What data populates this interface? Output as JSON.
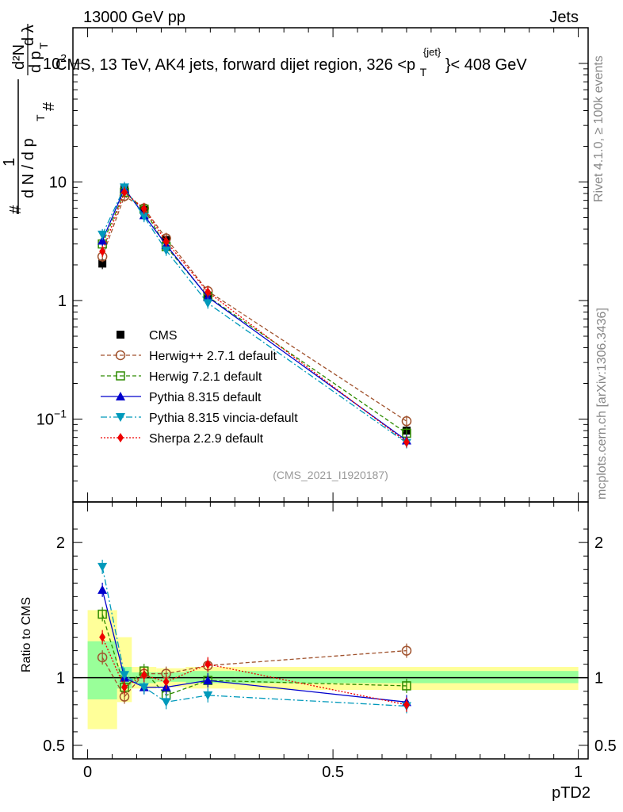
{
  "header": {
    "left": "13000 GeV pp",
    "right": "Jets"
  },
  "side_labels": {
    "rivet": "Rivet 4.1.0, ≥ 100k events",
    "mcplots": "mcplots.cern.ch [arXiv:1306.3436]"
  },
  "colors": {
    "band_inner": "#99ff99",
    "band_outer": "#ffff99"
  },
  "chart_data": [
    {
      "type": "line",
      "panel": "main",
      "title": "CMS, 13 TeV, AK4 jets, forward dijet region, 326 <p_T^{jet}}< 408 GeV",
      "title_parts": {
        "text": "CMS, 13 TeV, AK4 jets, forward dijet region, 326 <p",
        "sub": "T",
        "sup": "{jet}",
        "tail": "}< 408 GeV"
      },
      "ylabel_parts": {
        "one": "1",
        "hash": "#",
        "dn": "d N / d p",
        "t": "T",
        "d2n": "d²N",
        "dpt": "d p",
        "dl": "d λ"
      },
      "yscale": "log",
      "ylim": [
        0.02,
        200
      ],
      "xlim": [
        -0.03,
        1.02
      ],
      "yticks": [
        {
          "v": 0.1,
          "base": "10",
          "exp": "−1"
        },
        {
          "v": 1,
          "label": "1"
        },
        {
          "v": 10,
          "label": "10"
        },
        {
          "v": 100,
          "base": "10",
          "exp": "2"
        }
      ],
      "annotation": "(CMS_2021_I1920187)",
      "x": [
        0.03,
        0.075,
        0.115,
        0.16,
        0.245,
        0.65
      ],
      "x_edges": [
        0,
        0.06,
        0.09,
        0.14,
        0.2,
        0.3,
        1.0
      ],
      "series": [
        {
          "name": "CMS",
          "color": "#000000",
          "marker": "square-filled",
          "dash": "",
          "values": [
            2.05,
            8.8,
            5.8,
            3.25,
            1.1,
            0.08
          ],
          "errors": [
            0.1,
            0.3,
            0.2,
            0.1,
            0.04,
            0.004
          ]
        },
        {
          "name": "Herwig++ 2.7.1 default",
          "color": "#a0522d",
          "marker": "circle-open",
          "dash": "5,3",
          "values": [
            2.35,
            7.6,
            6.0,
            3.35,
            1.2,
            0.096
          ]
        },
        {
          "name": "Herwig 7.2.1 default",
          "color": "#2e8b00",
          "marker": "square-open",
          "dash": "5,3",
          "values": [
            3.0,
            8.2,
            5.9,
            2.85,
            1.08,
            0.076
          ]
        },
        {
          "name": "Pythia 8.315 default",
          "color": "#0000cc",
          "marker": "triangle-up",
          "dash": "",
          "values": [
            3.2,
            8.8,
            5.25,
            2.95,
            1.07,
            0.066
          ]
        },
        {
          "name": "Pythia 8.315 vincia-default",
          "color": "#0099bb",
          "marker": "triangle-down",
          "dash": "8,3,2,3",
          "values": [
            3.6,
            9.0,
            5.1,
            2.65,
            0.95,
            0.063
          ]
        },
        {
          "name": "Sherpa 2.2.9 default",
          "color": "#ee0000",
          "marker": "diamond",
          "dash": "2,2",
          "values": [
            2.6,
            8.2,
            5.95,
            3.15,
            1.18,
            0.064
          ]
        }
      ]
    },
    {
      "type": "line",
      "panel": "ratio",
      "ylabel": "Ratio to CMS",
      "xlabel": "pTD2",
      "ylim": [
        0.4,
        2.3
      ],
      "xlim": [
        -0.03,
        1.02
      ],
      "xticks": [
        {
          "v": 0,
          "label": "0"
        },
        {
          "v": 0.5,
          "label": "0.5"
        },
        {
          "v": 1,
          "label": "1"
        }
      ],
      "yticks": [
        {
          "v": 0.5,
          "label": "0.5"
        },
        {
          "v": 1,
          "label": "1"
        },
        {
          "v": 2,
          "label": "2"
        }
      ],
      "bands": [
        {
          "x0": 0,
          "x1": 0.06,
          "inner": [
            0.84,
            1.27
          ],
          "outer": [
            0.62,
            1.5
          ]
        },
        {
          "x0": 0.06,
          "x1": 0.09,
          "inner": [
            0.92,
            1.08
          ],
          "outer": [
            0.82,
            1.3
          ]
        },
        {
          "x0": 0.09,
          "x1": 0.14,
          "inner": [
            0.96,
            1.04
          ],
          "outer": [
            0.92,
            1.08
          ]
        },
        {
          "x0": 0.14,
          "x1": 0.2,
          "inner": [
            0.97,
            1.04
          ],
          "outer": [
            0.93,
            1.07
          ]
        },
        {
          "x0": 0.2,
          "x1": 0.3,
          "inner": [
            0.96,
            1.05
          ],
          "outer": [
            0.92,
            1.08
          ]
        },
        {
          "x0": 0.3,
          "x1": 1.0,
          "inner": [
            0.96,
            1.05
          ],
          "outer": [
            0.91,
            1.08
          ]
        }
      ],
      "series": [
        {
          "name": "Herwig++ 2.7.1 default",
          "values": [
            1.15,
            0.86,
            1.03,
            1.03,
            1.09,
            1.2
          ]
        },
        {
          "name": "Herwig 7.2.1 default",
          "values": [
            1.47,
            0.93,
            1.05,
            0.87,
            0.98,
            0.94
          ]
        },
        {
          "name": "Pythia 8.315 default",
          "values": [
            1.65,
            1.0,
            0.93,
            0.93,
            0.98,
            0.82
          ]
        },
        {
          "name": "Pythia 8.315 vincia-default",
          "values": [
            1.82,
            1.02,
            0.93,
            0.82,
            0.87,
            0.79
          ]
        },
        {
          "name": "Sherpa 2.2.9 default",
          "values": [
            1.3,
            0.93,
            1.02,
            0.97,
            1.1,
            0.8
          ]
        }
      ]
    }
  ]
}
